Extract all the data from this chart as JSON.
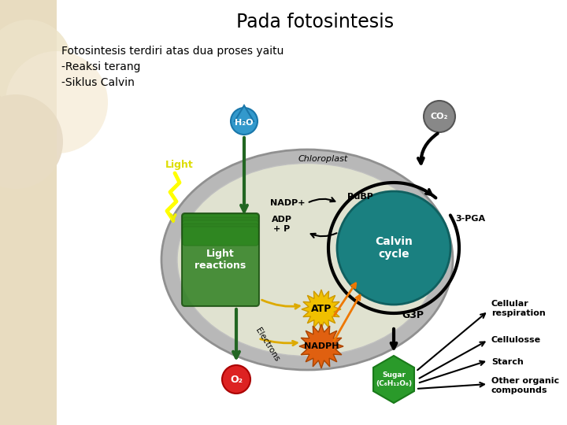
{
  "title_display": "Pada fotosintesis",
  "subtitle_lines": [
    "Fotosintesis terdiri atas dua proses yaitu",
    "-Reaksi terang",
    "-Siklus Calvin"
  ],
  "bg_left_color": "#e8dcc0",
  "bg_main_color": "#ffffff",
  "chloroplast_outer_color": "#b8b8b8",
  "chloroplast_inner_color": "#e0e2d0",
  "light_reactions_color": "#2e8020",
  "calvin_cycle_color": "#1a8080",
  "atp_color": "#f0c000",
  "nadph_color": "#e06010",
  "h2o_color": "#3399cc",
  "co2_color": "#888888",
  "o2_color": "#dd2222",
  "sugar_color": "#2a9a2a",
  "green_arrow_color": "#226622",
  "labels": {
    "light": "Light",
    "chloroplast": "Chloroplast",
    "nadp": "NADP+",
    "adp": "ADP\n+ P",
    "rubp": "RuBP",
    "pga": "3-PGA",
    "atp": "ATP",
    "nadph": "NADPH",
    "g3p": "G3P",
    "o2": "O₂",
    "h2o": "H₂O",
    "co2": "CO₂",
    "light_reactions": "Light\nreactions",
    "calvin_cycle": "Calvin\ncycle",
    "sugar": "Sugar\n(C₆H₁₂O₆)",
    "electrons": "Electrons",
    "cellular_resp": "Cellular\nrespiration",
    "cellulose": "Cellulosse",
    "starch": "Starch",
    "other": "Other organic\ncompounds"
  }
}
